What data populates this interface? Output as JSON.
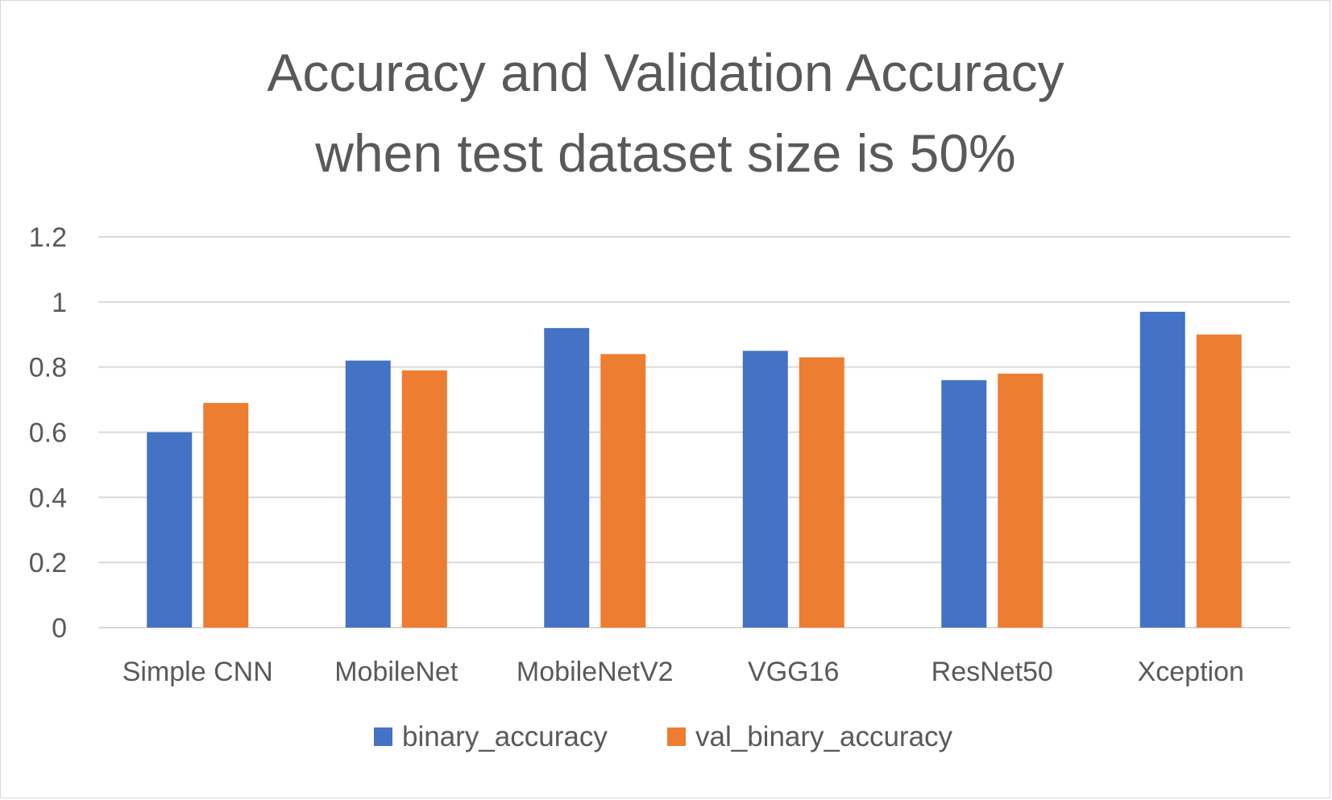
{
  "chart_data": {
    "type": "bar",
    "title": "Accuracy and Validation Accuracy when test dataset size is 50%",
    "title_lines": [
      "Accuracy and Validation Accuracy",
      "when test dataset size is 50%"
    ],
    "categories": [
      "Simple CNN",
      "MobileNet",
      "MobileNetV2",
      "VGG16",
      "ResNet50",
      "Xception"
    ],
    "series": [
      {
        "name": "binary_accuracy",
        "color": "#4472c4",
        "values": [
          0.6,
          0.82,
          0.92,
          0.85,
          0.76,
          0.97
        ]
      },
      {
        "name": "val_binary_accuracy",
        "color": "#ed7d31",
        "values": [
          0.69,
          0.79,
          0.84,
          0.83,
          0.78,
          0.9
        ]
      }
    ],
    "yticks": [
      "0",
      "0.2",
      "0.4",
      "0.6",
      "0.8",
      "1",
      "1.2"
    ],
    "ylim": [
      0,
      1.2
    ],
    "xlabel": "",
    "ylabel": "",
    "grid": true,
    "legend_position": "bottom"
  }
}
